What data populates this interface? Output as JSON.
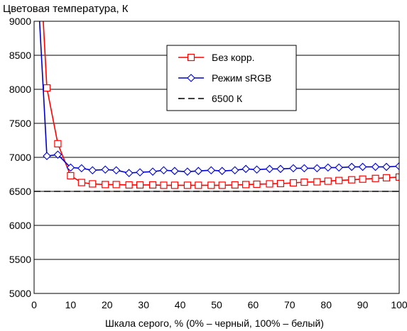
{
  "chart_data": {
    "type": "line",
    "title": "Цветовая температура, К",
    "xlabel": "Шкала серого, % (0% – черный, 100% – белый)",
    "ylabel": "",
    "xlim": [
      0,
      100
    ],
    "ylim": [
      5000,
      9000
    ],
    "x_ticks": [
      "0",
      "10",
      "20",
      "30",
      "40",
      "50",
      "60",
      "70",
      "80",
      "90",
      "100"
    ],
    "y_ticks": [
      "5000",
      "5500",
      "6000",
      "6500",
      "7000",
      "7500",
      "8000",
      "8500",
      "9000"
    ],
    "grid": "horizontal",
    "legend_position": "top-right",
    "series": [
      {
        "name": "Без корр.",
        "color": "#ff0000",
        "marker": "square",
        "line_style": "solid",
        "x": [
          2.5,
          3.5,
          6.5,
          10,
          13,
          16,
          19.5,
          22.5,
          26,
          29,
          32.5,
          35.5,
          38.5,
          42,
          45,
          48.5,
          51.5,
          55,
          58,
          61,
          64.5,
          67.5,
          71,
          74,
          77.5,
          80.5,
          83.5,
          87,
          90,
          93.5,
          96.5,
          100
        ],
        "values": [
          9000,
          8020,
          7200,
          6730,
          6630,
          6610,
          6600,
          6600,
          6595,
          6595,
          6595,
          6590,
          6590,
          6590,
          6590,
          6590,
          6590,
          6595,
          6600,
          6605,
          6610,
          6615,
          6625,
          6635,
          6640,
          6650,
          6660,
          6670,
          6680,
          6690,
          6700,
          6710
        ]
      },
      {
        "name": "Режим sRGB",
        "color": "#0000cc",
        "marker": "diamond",
        "line_style": "solid",
        "x": [
          1.5,
          3.5,
          6.5,
          10,
          13,
          16,
          19.5,
          22.5,
          26,
          29,
          32.5,
          35.5,
          38.5,
          42,
          45,
          48.5,
          51.5,
          55,
          58,
          61,
          64.5,
          67.5,
          71,
          74,
          77.5,
          80.5,
          83.5,
          87,
          90,
          93.5,
          96.5,
          100
        ],
        "values": [
          9000,
          7020,
          7040,
          6850,
          6840,
          6810,
          6820,
          6810,
          6770,
          6780,
          6790,
          6810,
          6800,
          6790,
          6800,
          6810,
          6800,
          6810,
          6830,
          6820,
          6830,
          6830,
          6840,
          6840,
          6840,
          6850,
          6850,
          6860,
          6860,
          6860,
          6860,
          6870
        ]
      },
      {
        "name": "6500 К",
        "color": "#000000",
        "marker": "none",
        "line_style": "dashed",
        "x": [
          0,
          100
        ],
        "values": [
          6500,
          6500
        ]
      }
    ]
  }
}
